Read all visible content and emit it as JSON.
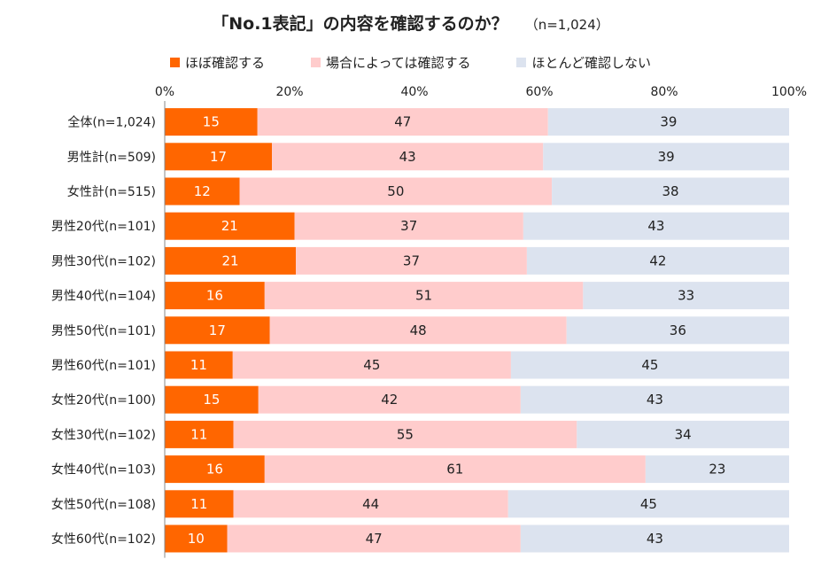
{
  "title": "「No.1表記」の内容を確認するのか？",
  "subtitle": "（n=1,024）",
  "chart_data": {
    "type": "bar",
    "orientation": "horizontal",
    "stacked": true,
    "percent_scale": true,
    "title": "「No.1表記」の内容を確認するのか？",
    "subtitle": "（n=1,024）",
    "xlim": [
      0,
      100
    ],
    "x_ticks": [
      "0%",
      "20%",
      "40%",
      "60%",
      "80%",
      "100%"
    ],
    "categories": [
      "全体(n=1,024)",
      "男性計(n=509)",
      "女性計(n=515)",
      "男性20代(n=101)",
      "男性30代(n=102)",
      "男性40代(n=104)",
      "男性50代(n=101)",
      "男性60代(n=101)",
      "女性20代(n=100)",
      "女性30代(n=102)",
      "女性40代(n=103)",
      "女性50代(n=108)",
      "女性60代(n=102)"
    ],
    "series": [
      {
        "name": "ほぼ確認する",
        "color": "#ff6600",
        "values": [
          15,
          17,
          12,
          21,
          21,
          16,
          17,
          11,
          15,
          11,
          16,
          11,
          10
        ]
      },
      {
        "name": "場合によっては確認する",
        "color": "#ffcccc",
        "values": [
          47,
          43,
          50,
          37,
          37,
          51,
          48,
          45,
          42,
          55,
          61,
          44,
          47
        ]
      },
      {
        "name": "ほとんど確認しない",
        "color": "#dce3ef",
        "values": [
          39,
          39,
          38,
          43,
          42,
          33,
          36,
          45,
          43,
          34,
          23,
          45,
          43
        ]
      }
    ],
    "legend_position": "top",
    "grid": false
  }
}
